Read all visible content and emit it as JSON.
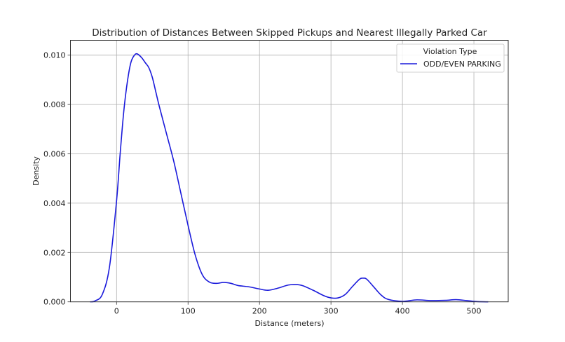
{
  "chart_data": {
    "type": "line",
    "subtype": "kde",
    "title": "Distribution of Distances Between Skipped Pickups and Nearest Illegally Parked Car",
    "xlabel": "Distance (meters)",
    "ylabel": "Density",
    "xlim": [
      -65,
      550
    ],
    "ylim": [
      0,
      0.0105
    ],
    "xticks": [
      0,
      100,
      200,
      300,
      400,
      500
    ],
    "xtick_labels": [
      "0",
      "100",
      "200",
      "300",
      "400",
      "500"
    ],
    "yticks": [
      0.0,
      0.002,
      0.004,
      0.006,
      0.008,
      0.01
    ],
    "ytick_labels": [
      "0.000",
      "0.002",
      "0.004",
      "0.006",
      "0.008",
      "0.010"
    ],
    "grid": true,
    "legend": {
      "title": "Violation Type",
      "position": "upper right",
      "entries": [
        {
          "label": "ODD/EVEN PARKING",
          "color": "#1a1adb"
        }
      ]
    },
    "series": [
      {
        "name": "ODD/EVEN PARKING",
        "color": "#1a1adb",
        "x": [
          -37,
          -30,
          -20,
          -10,
          0,
          5,
          10,
          15,
          20,
          25,
          29,
          35,
          40,
          45,
          50,
          55,
          60,
          70,
          80,
          90,
          100,
          110,
          120,
          130,
          140,
          150,
          160,
          170,
          185,
          200,
          212,
          225,
          240,
          250,
          260,
          275,
          290,
          300,
          310,
          320,
          330,
          340,
          345,
          350,
          360,
          370,
          380,
          400,
          420,
          440,
          460,
          475,
          490,
          505,
          520
        ],
        "values": [
          0.0,
          4e-05,
          0.0003,
          0.0014,
          0.0041,
          0.006,
          0.0077,
          0.0089,
          0.0097,
          0.01,
          0.01005,
          0.0099,
          0.0097,
          0.0095,
          0.0091,
          0.0085,
          0.0079,
          0.0068,
          0.0057,
          0.0044,
          0.0031,
          0.0019,
          0.0011,
          0.0008,
          0.00075,
          0.00079,
          0.00075,
          0.00066,
          0.00061,
          0.00052,
          0.00047,
          0.00055,
          0.00068,
          0.0007,
          0.00066,
          0.00047,
          0.00025,
          0.00016,
          0.00016,
          0.0003,
          0.00062,
          0.00092,
          0.00096,
          0.00092,
          0.0006,
          0.00028,
          0.0001,
          2e-05,
          8e-05,
          5e-05,
          6e-05,
          9e-05,
          5e-05,
          1e-05,
          0.0
        ]
      }
    ]
  }
}
